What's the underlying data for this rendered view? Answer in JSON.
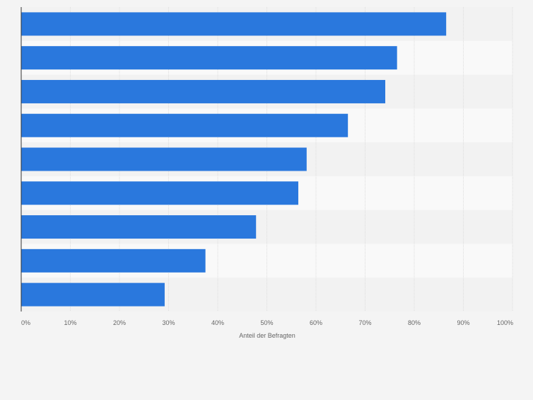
{
  "chart_data": {
    "type": "bar",
    "orientation": "horizontal",
    "categories": [
      "",
      "",
      "",
      "",
      "",
      "",
      "",
      "",
      ""
    ],
    "values": [
      86.5,
      76.5,
      74.1,
      66.5,
      58.1,
      56.4,
      47.8,
      37.5,
      29.2
    ],
    "xlabel": "Anteil der Befragten",
    "ylabel": "",
    "xlim": [
      0,
      100
    ],
    "tick_labels": [
      "0%",
      "10%",
      "20%",
      "30%",
      "40%",
      "50%",
      "60%",
      "70%",
      "80%",
      "90%",
      "100%"
    ],
    "grid": true,
    "bar_color": "#2a78dd",
    "band_colors": [
      "#f2f2f2",
      "#f9f9f9"
    ],
    "gridline_color": "#dddddd",
    "axis_color": "#333333",
    "tick_label_color": "#666666"
  }
}
